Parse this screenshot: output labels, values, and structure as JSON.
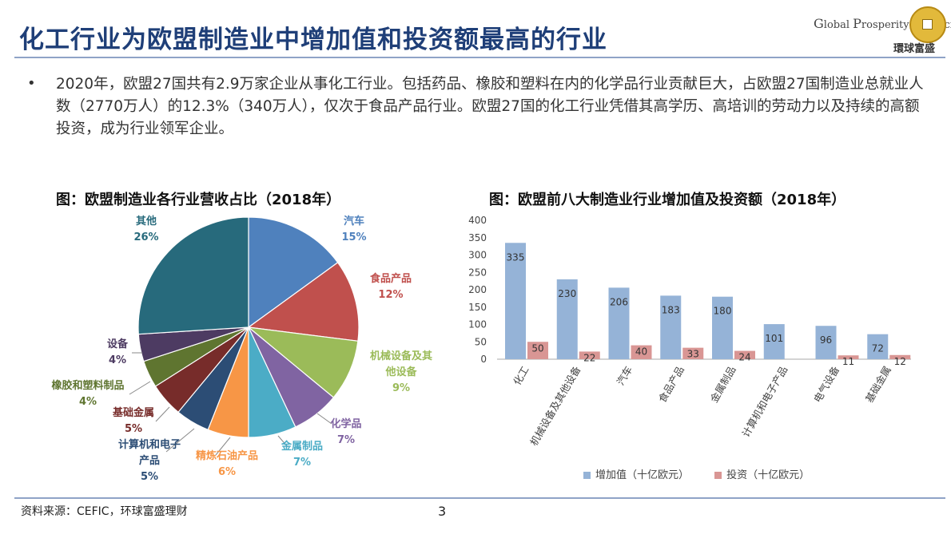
{
  "header": {
    "title": "化工行业为欧盟制造业中增加值和投资额最高的行业",
    "logo": {
      "line1": "Global Prosperity Financial",
      "cn": "環球富盛",
      "coin_text": "環球富盛",
      "colors": {
        "coin": "#e2b93b",
        "text": "#444444"
      }
    }
  },
  "body": {
    "bullet": "•",
    "paragraph": "2020年，欧盟27国共有2.9万家企业从事化工行业。包括药品、橡胶和塑料在内的化学品行业贡献巨大，占欧盟27国制造业总就业人数（2770万人）的12.3%（340万人），仅次于食品产品行业。欧盟27国的化工行业凭借其高学历、高培训的劳动力以及持续的高额投资，成为行业领军企业。"
  },
  "chart_data": [
    {
      "type": "pie",
      "title": "图：欧盟制造业各行业营收占比（2018年）",
      "slices": [
        {
          "name": "汽车",
          "value": 15,
          "label": "15%",
          "color": "#4f81bd"
        },
        {
          "name": "食品产品",
          "value": 12,
          "label": "12%",
          "color": "#c0504d"
        },
        {
          "name": "机械设备及其他设备",
          "value": 9,
          "label": "9%",
          "color": "#9bbb59"
        },
        {
          "name": "化学品",
          "value": 7,
          "label": "7%",
          "color": "#8064a2"
        },
        {
          "name": "金属制品",
          "value": 7,
          "label": "7%",
          "color": "#4bacc6"
        },
        {
          "name": "精炼石油产品",
          "value": 6,
          "label": "6%",
          "color": "#f79646"
        },
        {
          "name": "计算机和电子产品",
          "value": 5,
          "label": "5%",
          "color": "#2c4d75"
        },
        {
          "name": "基础金属",
          "value": 5,
          "label": "5%",
          "color": "#772c2a"
        },
        {
          "name": "橡胶和塑料制品",
          "value": 4,
          "label": "4%",
          "color": "#5f7530"
        },
        {
          "name": "设备",
          "value": 4,
          "label": "4%",
          "color": "#4d3b62"
        },
        {
          "name": "其他",
          "value": 26,
          "label": "26%",
          "color": "#276a7c"
        }
      ]
    },
    {
      "type": "bar",
      "title": "图：欧盟前八大制造业行业增加值及投资额（2018年）",
      "categories": [
        "化工",
        "机械设备及其他设备",
        "汽车",
        "食品产品",
        "金属制品",
        "计算机和电子产品",
        "电气设备",
        "基础金属"
      ],
      "series": [
        {
          "name": "增加值（十亿欧元）",
          "values": [
            335,
            230,
            206,
            183,
            180,
            101,
            96,
            72
          ],
          "color": "#95b3d7"
        },
        {
          "name": "投资（十亿欧元）",
          "values": [
            50,
            22,
            40,
            33,
            24,
            null,
            11,
            12
          ],
          "color": "#d99694"
        }
      ],
      "ylim": [
        0,
        400
      ],
      "yticks": [
        0,
        50,
        100,
        150,
        200,
        250,
        300,
        350,
        400
      ],
      "legend": "bottom"
    }
  ],
  "footer": {
    "source": "资料来源：CEFIC，环球富盛理财",
    "page": "3"
  }
}
